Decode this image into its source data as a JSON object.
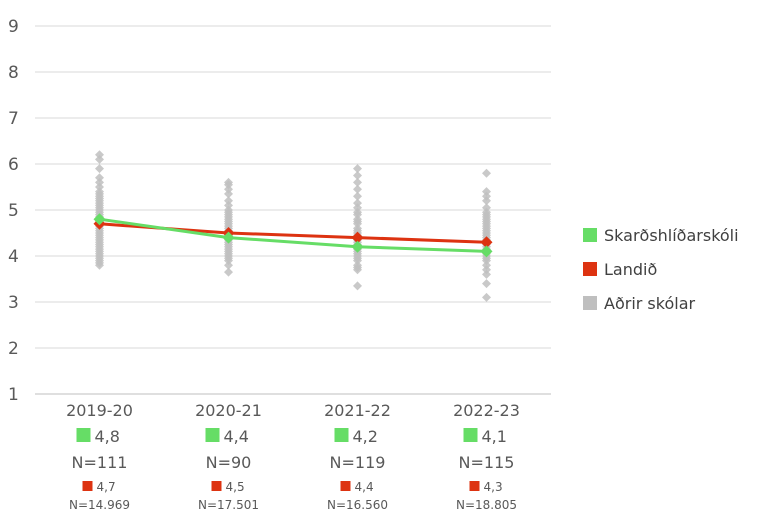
{
  "chart_data": {
    "type": "line",
    "categories": [
      "2019-20",
      "2020-21",
      "2021-22",
      "2022-23"
    ],
    "ylim": [
      1,
      9
    ],
    "yticks": [
      "1",
      "2",
      "3",
      "4",
      "5",
      "6",
      "7",
      "8",
      "9"
    ],
    "grid": true,
    "legend_position": "right",
    "series": [
      {
        "name": "Skarðshlíðarskóli",
        "color": "#66DD66",
        "marker": "square",
        "values": [
          4.8,
          4.4,
          4.2,
          4.1
        ],
        "value_labels": [
          "4,8",
          "4,4",
          "4,2",
          "4,1"
        ],
        "n_labels": [
          "N=111",
          "N=90",
          "N=119",
          "N=115"
        ]
      },
      {
        "name": "Landið",
        "color": "#DD3311",
        "marker": "diamond",
        "values": [
          4.7,
          4.5,
          4.4,
          4.3
        ],
        "value_labels": [
          "4,7",
          "4,5",
          "4,4",
          "4,3"
        ],
        "n_labels": [
          "N=14.969",
          "N=17.501",
          "N=16.560",
          "N=18.805"
        ]
      },
      {
        "name": "Aðrir skólar",
        "color": "#BFBFBF",
        "marker": "diamond",
        "type": "scatter",
        "points": [
          [
            6.2,
            6.1,
            5.9,
            5.7,
            5.6,
            5.5,
            5.4,
            5.35,
            5.3,
            5.25,
            5.2,
            5.15,
            5.1,
            5.05,
            5.0,
            4.95,
            4.9,
            4.85,
            4.8,
            4.75,
            4.7,
            4.65,
            4.6,
            4.55,
            4.5,
            4.45,
            4.4,
            4.35,
            4.3,
            4.25,
            4.2,
            4.15,
            4.1,
            4.05,
            4.0,
            3.95,
            3.9,
            3.85,
            3.8
          ],
          [
            5.6,
            5.55,
            5.45,
            5.35,
            5.2,
            5.1,
            5.0,
            4.95,
            4.9,
            4.85,
            4.8,
            4.75,
            4.7,
            4.65,
            4.6,
            4.55,
            4.5,
            4.45,
            4.4,
            4.35,
            4.3,
            4.25,
            4.2,
            4.15,
            4.1,
            4.05,
            4.0,
            3.95,
            3.9,
            3.8,
            3.65
          ],
          [
            5.9,
            5.75,
            5.6,
            5.45,
            5.3,
            5.15,
            5.05,
            4.95,
            4.9,
            4.8,
            4.75,
            4.7,
            4.6,
            4.55,
            4.5,
            4.45,
            4.4,
            4.35,
            4.3,
            4.25,
            4.2,
            4.15,
            4.1,
            4.05,
            4.0,
            3.95,
            3.9,
            3.8,
            3.75,
            3.7,
            3.35
          ],
          [
            5.8,
            5.4,
            5.3,
            5.2,
            5.05,
            4.95,
            4.9,
            4.85,
            4.8,
            4.75,
            4.7,
            4.65,
            4.6,
            4.55,
            4.5,
            4.45,
            4.4,
            4.35,
            4.3,
            4.25,
            4.2,
            4.15,
            4.1,
            4.05,
            4.0,
            3.95,
            3.9,
            3.8,
            3.7,
            3.6,
            3.4,
            3.1
          ]
        ]
      }
    ]
  }
}
